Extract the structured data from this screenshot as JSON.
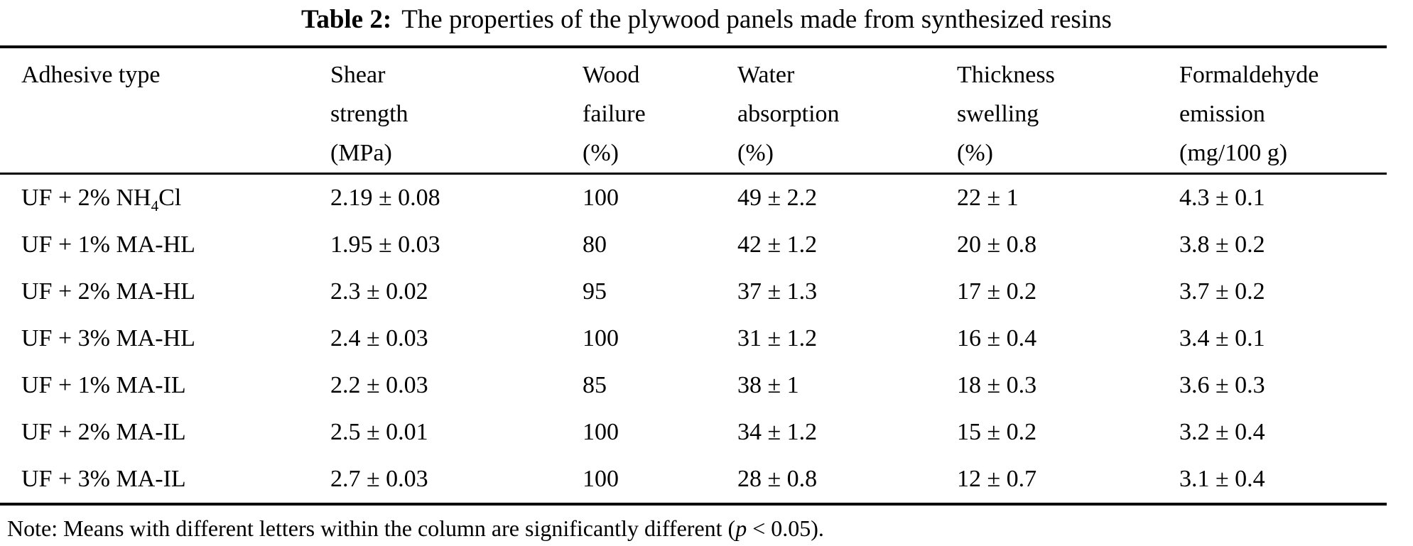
{
  "page": {
    "background": "#ffffff",
    "text_color": "#000000"
  },
  "title": {
    "label": "Table 2:",
    "text": "The properties of the plywood panels made from synthesized resins"
  },
  "table": {
    "columns": [
      {
        "id": "adhesive-type",
        "lines": [
          "Adhesive type",
          "",
          ""
        ]
      },
      {
        "id": "shear-strength",
        "lines": [
          "Shear",
          "strength",
          "(MPa)"
        ]
      },
      {
        "id": "wood-failure",
        "lines": [
          "Wood",
          "failure",
          "(%)"
        ]
      },
      {
        "id": "water-absorption",
        "lines": [
          "Water",
          "absorption",
          "(%)"
        ]
      },
      {
        "id": "thickness-swelling",
        "lines": [
          "Thickness",
          "swelling",
          "(%)"
        ]
      },
      {
        "id": "formaldehyde-emission",
        "lines": [
          "Formaldehyde",
          "emission",
          "(mg/100 g)"
        ]
      }
    ],
    "rows": [
      {
        "adhesive": {
          "pre": "UF + 2% NH",
          "sub": "4",
          "post": "Cl"
        },
        "values": [
          "2.19 ± 0.08",
          "100",
          "49 ± 2.2",
          "22 ± 1",
          "4.3 ± 0.1"
        ]
      },
      {
        "adhesive": {
          "pre": "UF + 1% MA-HL",
          "sub": "",
          "post": ""
        },
        "values": [
          "1.95 ± 0.03",
          "80",
          "42 ± 1.2",
          "20 ± 0.8",
          "3.8 ± 0.2"
        ]
      },
      {
        "adhesive": {
          "pre": "UF + 2% MA-HL",
          "sub": "",
          "post": ""
        },
        "values": [
          "2.3 ± 0.02",
          "95",
          "37 ± 1.3",
          "17 ± 0.2",
          "3.7 ± 0.2"
        ]
      },
      {
        "adhesive": {
          "pre": "UF + 3% MA-HL",
          "sub": "",
          "post": ""
        },
        "values": [
          "2.4 ± 0.03",
          "100",
          "31 ± 1.2",
          "16 ± 0.4",
          "3.4 ± 0.1"
        ]
      },
      {
        "adhesive": {
          "pre": "UF + 1% MA-IL",
          "sub": "",
          "post": ""
        },
        "values": [
          "2.2 ± 0.03",
          "85",
          "38 ± 1",
          "18 ± 0.3",
          "3.6 ± 0.3"
        ]
      },
      {
        "adhesive": {
          "pre": "UF + 2% MA-IL",
          "sub": "",
          "post": ""
        },
        "values": [
          "2.5 ± 0.01",
          "100",
          "34 ± 1.2",
          "15 ± 0.2",
          "3.2 ± 0.4"
        ]
      },
      {
        "adhesive": {
          "pre": "UF + 3% MA-IL",
          "sub": "",
          "post": ""
        },
        "values": [
          "2.7 ± 0.03",
          "100",
          "28 ± 0.8",
          "12 ± 0.7",
          "3.1 ± 0.4"
        ]
      }
    ]
  },
  "note": {
    "pre": "Note: Means with different letters within the column are significantly different (",
    "italic": "p",
    "post": " < 0.05)."
  }
}
